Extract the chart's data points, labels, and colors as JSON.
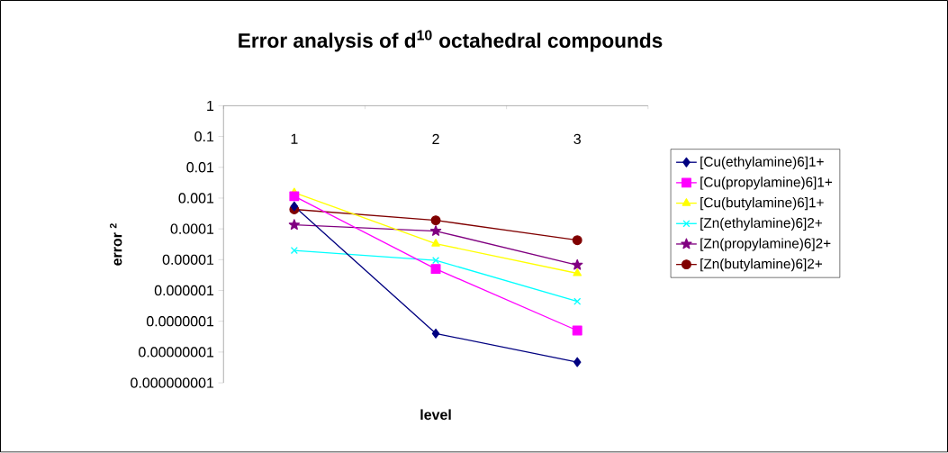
{
  "chart_data": {
    "type": "line",
    "title": "Error analysis of d$^{10}$ octahedral compounds",
    "xlabel": "level",
    "ylabel": "error $^{2}$",
    "categories": [
      "1",
      "2",
      "3"
    ],
    "series": [
      {
        "name": "[Cu(ethylamine)6]1+",
        "color": "#000080",
        "marker": "diamond",
        "values": [
          0.00054,
          4e-08,
          4.7e-09
        ]
      },
      {
        "name": "[Cu(propylamine)6]1+",
        "color": "#ff00ff",
        "marker": "square",
        "values": [
          0.00115,
          5e-06,
          5e-08
        ]
      },
      {
        "name": "[Cu(butylamine)6]1+",
        "color": "#ffff00",
        "marker": "triangle",
        "values": [
          0.0015,
          3.3e-05,
          3.6e-06
        ]
      },
      {
        "name": "[Zn(ethylamine)6]2+",
        "color": "#00ffff",
        "marker": "cross",
        "values": [
          2e-05,
          9.5e-06,
          4.4e-07
        ]
      },
      {
        "name": "[Zn(propylamine)6]2+",
        "color": "#800080",
        "marker": "star",
        "values": [
          0.000135,
          8.5e-05,
          6.7e-06
        ]
      },
      {
        "name": "[Zn(butylamine)6]2+",
        "color": "#800000",
        "marker": "circle",
        "values": [
          0.00043,
          0.00019,
          4.3e-05
        ]
      }
    ],
    "log": "y",
    "ylim": [
      1e-09,
      1
    ],
    "yticks": [
      {
        "value": 1e-09,
        "label": "0.000000001"
      },
      {
        "value": 1e-08,
        "label": "0.00000001"
      },
      {
        "value": 1e-07,
        "label": "0.0000001"
      },
      {
        "value": 1e-06,
        "label": "0.000001"
      },
      {
        "value": 1e-05,
        "label": "0.00001"
      },
      {
        "value": 0.0001,
        "label": "0.0001"
      },
      {
        "value": 0.001,
        "label": "0.001"
      },
      {
        "value": 0.01,
        "label": "0.01"
      },
      {
        "value": 0.1,
        "label": "0.1"
      },
      {
        "value": 1,
        "label": "1"
      }
    ],
    "grid": false,
    "legend": "right",
    "line_style": "solid"
  }
}
